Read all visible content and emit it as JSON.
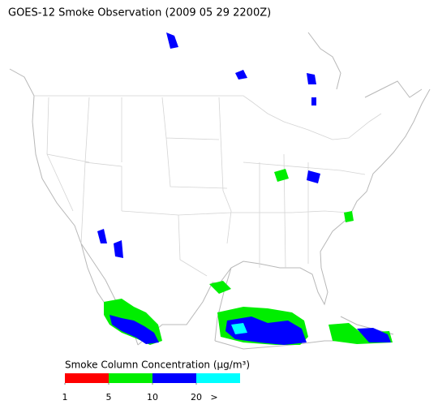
{
  "header": {
    "title": "GOES-12 Smoke Observation (2009 05 29  2200Z)"
  },
  "legend": {
    "title": "Smoke Column Concentration (μg/m³)",
    "colors": [
      "#ff0000",
      "#00ee00",
      "#0000ff",
      "#00ffff"
    ],
    "ticks": [
      1,
      5,
      10,
      20
    ],
    "overflow_label": ">"
  }
}
